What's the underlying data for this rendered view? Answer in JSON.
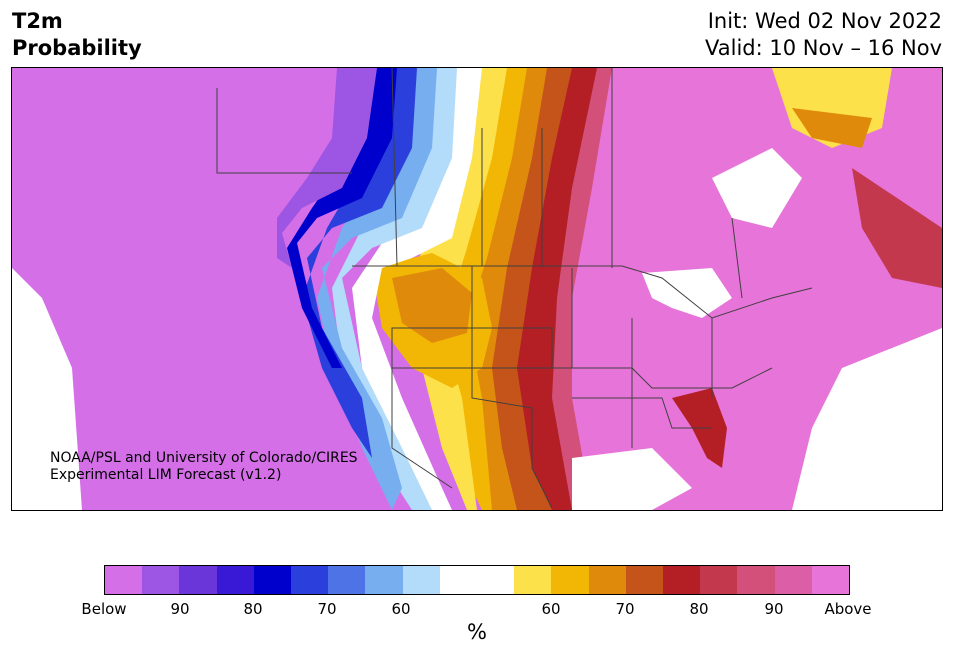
{
  "header": {
    "title_line1": "T2m",
    "title_line2": "Probability",
    "init": "Init: Wed 02 Nov 2022",
    "valid": "Valid: 10 Nov – 16 Nov"
  },
  "credit": {
    "line1": "NOAA/PSL and University of Colorado/CIRES",
    "line2": "Experimental LIM Forecast (v1.2)"
  },
  "colorbar": {
    "unit": "%",
    "colors": [
      "#d46fe8",
      "#9d55e4",
      "#6a35d9",
      "#3a19d6",
      "#0000cc",
      "#2a3fdc",
      "#4e73e6",
      "#77aef0",
      "#b3dcfa",
      "#ffffff",
      "#ffffff",
      "#fde14b",
      "#f2b705",
      "#e08a0b",
      "#c4541a",
      "#b31f24",
      "#c4384e",
      "#d2507a",
      "#db5ea6",
      "#e774d9"
    ],
    "tick_labels": [
      "Below",
      "90",
      "80",
      "70",
      "60",
      "60",
      "70",
      "80",
      "90",
      "Above"
    ]
  },
  "map": {
    "colors": {
      "below_extreme": "#d46fe8",
      "below_90": "#9d55e4",
      "below_80": "#3a19d6",
      "below_70": "#2a3fdc",
      "below_60": "#77aef0",
      "below_50": "#b3dcfa",
      "neutral": "#ffffff",
      "above_50": "#fde14b",
      "above_60": "#f2b705",
      "above_70": "#e08a0b",
      "above_75": "#c4541a",
      "above_80": "#b31f24",
      "above_85": "#c4384e",
      "above_90": "#d2507a",
      "above_extreme": "#e774d9",
      "border": "#404040"
    }
  }
}
